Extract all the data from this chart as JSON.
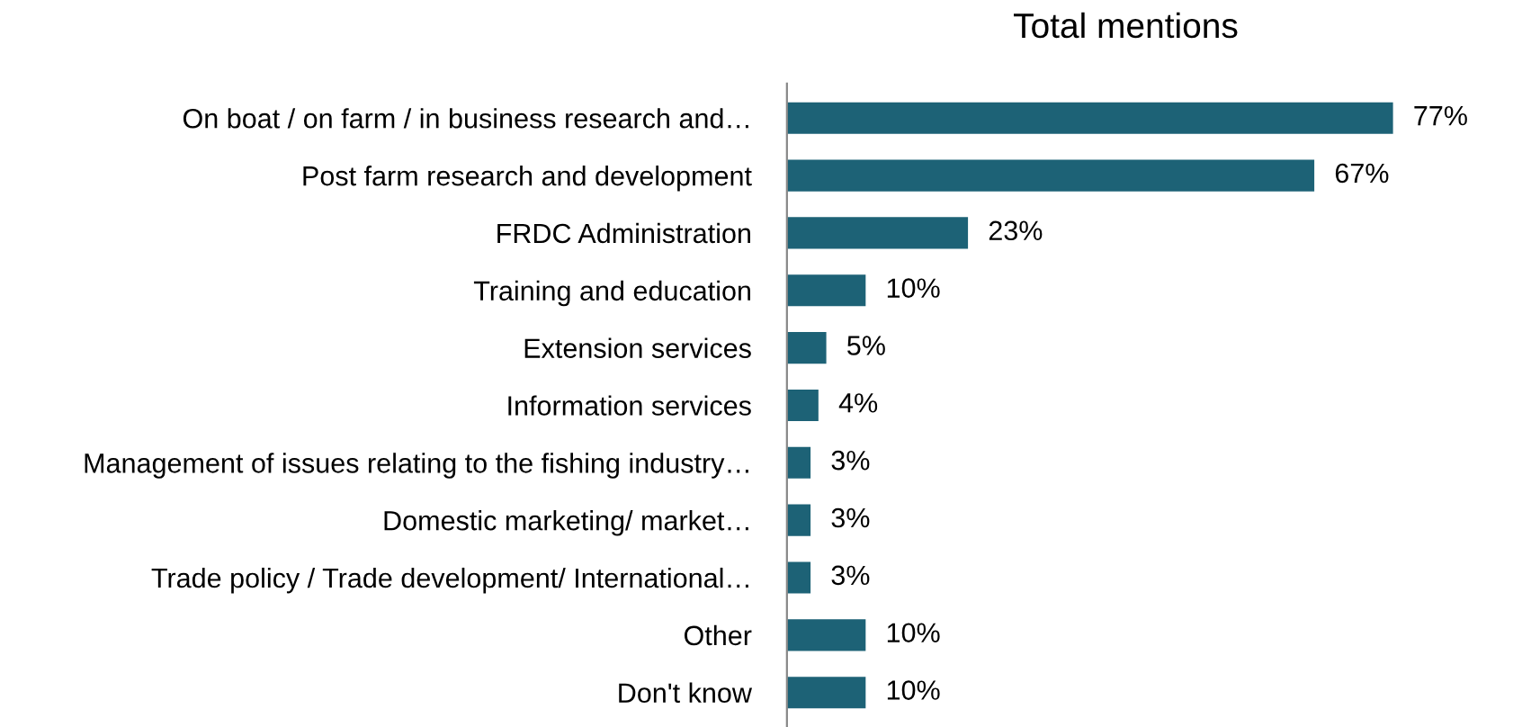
{
  "chart_data": {
    "type": "bar",
    "orientation": "horizontal",
    "title": "Total mentions",
    "categories": [
      "On boat / on farm / in business research and…",
      "Post farm research and development",
      "FRDC Administration",
      "Training and education",
      "Extension services",
      "Information services",
      "Management of issues relating to the fishing industry…",
      "Domestic marketing/ market…",
      "Trade policy / Trade development/ International…",
      "Other",
      "Don't know"
    ],
    "values": [
      77,
      67,
      23,
      10,
      5,
      4,
      3,
      3,
      3,
      10,
      10
    ],
    "value_labels": [
      "77%",
      "67%",
      "23%",
      "10%",
      "5%",
      "4%",
      "3%",
      "3%",
      "3%",
      "10%",
      "10%"
    ],
    "color": "#1d6276",
    "grid": false,
    "legend": false,
    "tick_labels": "y"
  }
}
